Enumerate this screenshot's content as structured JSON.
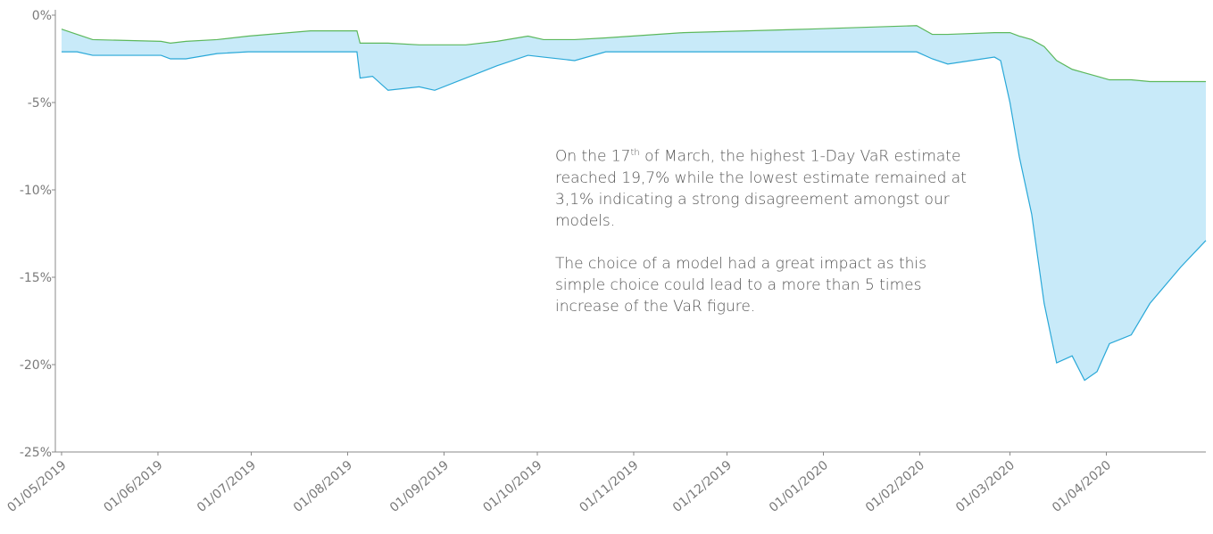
{
  "chart_data": {
    "type": "band",
    "x": [
      "2019-05-01",
      "2019-05-06",
      "2019-05-11",
      "2019-06-02",
      "2019-06-05",
      "2019-06-10",
      "2019-06-20",
      "2019-06-30",
      "2019-07-20",
      "2019-08-04",
      "2019-08-05",
      "2019-08-09",
      "2019-08-14",
      "2019-08-24",
      "2019-08-29",
      "2019-09-08",
      "2019-09-18",
      "2019-09-28",
      "2019-10-03",
      "2019-10-13",
      "2019-10-23",
      "2019-11-17",
      "2019-12-27",
      "2020-01-31",
      "2020-02-05",
      "2020-02-10",
      "2020-02-25",
      "2020-02-27",
      "2020-03-01",
      "2020-03-04",
      "2020-03-08",
      "2020-03-12",
      "2020-03-16",
      "2020-03-21",
      "2020-03-25",
      "2020-03-29",
      "2020-04-02",
      "2020-04-09",
      "2020-04-15",
      "2020-04-25",
      "2020-05-03"
    ],
    "series": [
      {
        "color": "#5cb85c",
        "values": [
          -0.8,
          -1.1,
          -1.4,
          -1.5,
          -1.6,
          -1.5,
          -1.4,
          -1.2,
          -0.9,
          -0.9,
          -1.6,
          -1.6,
          -1.6,
          -1.7,
          -1.7,
          -1.7,
          -1.5,
          -1.2,
          -1.4,
          -1.4,
          -1.3,
          -1.0,
          -0.8,
          -0.6,
          -1.1,
          -1.1,
          -1.0,
          -1.0,
          -1.0,
          -1.2,
          -1.4,
          -1.8,
          -2.6,
          -3.1,
          -3.3,
          -3.5,
          -3.7,
          -3.7,
          -3.8,
          -3.8,
          -3.8
        ]
      },
      {
        "color": "#29a8d8",
        "values": [
          -2.1,
          -2.1,
          -2.3,
          -2.3,
          -2.5,
          -2.5,
          -2.2,
          -2.1,
          -2.1,
          -2.1,
          -3.6,
          -3.5,
          -4.3,
          -4.1,
          -4.3,
          -3.6,
          -2.9,
          -2.3,
          -2.4,
          -2.6,
          -2.1,
          -2.1,
          -2.1,
          -2.1,
          -2.5,
          -2.8,
          -2.4,
          -2.6,
          -5.0,
          -8.1,
          -11.4,
          -16.5,
          -19.9,
          -19.5,
          -20.9,
          -20.4,
          -18.8,
          -18.3,
          -16.5,
          -14.4,
          -12.9
        ]
      }
    ],
    "fill_color": "#c8eaf9",
    "xlim": [
      "2019-04-29",
      "2020-05-03"
    ],
    "xticks": [
      {
        "value": "2019-05-01",
        "label": "01/05/2019"
      },
      {
        "value": "2019-06-01",
        "label": "01/06/2019"
      },
      {
        "value": "2019-07-01",
        "label": "01/07/2019"
      },
      {
        "value": "2019-08-01",
        "label": "01/08/2019"
      },
      {
        "value": "2019-09-01",
        "label": "01/09/2019"
      },
      {
        "value": "2019-10-01",
        "label": "01/10/2019"
      },
      {
        "value": "2019-11-01",
        "label": "01/11/2019"
      },
      {
        "value": "2019-12-01",
        "label": "01/12/2019"
      },
      {
        "value": "2020-01-01",
        "label": "01/01/2020"
      },
      {
        "value": "2020-02-01",
        "label": "01/02/2020"
      },
      {
        "value": "2020-03-01",
        "label": "01/03/2020"
      },
      {
        "value": "2020-04-01",
        "label": "01/04/2020"
      }
    ],
    "ylim": [
      -25,
      0
    ],
    "yticks": [
      {
        "value": 0,
        "label": "0%"
      },
      {
        "value": -5,
        "label": "-5%"
      },
      {
        "value": -10,
        "label": "-10%"
      },
      {
        "value": -15,
        "label": "-15%"
      },
      {
        "value": -20,
        "label": "-20%"
      },
      {
        "value": -25,
        "label": "-25%"
      }
    ],
    "annotations": [
      {
        "parts": [
          "On the 17",
          "th",
          " of March, the highest 1-Day VaR estimate reached 19,7% while the lowest estimate remained at 3,1% indicating a strong disagreement amongst our models."
        ]
      },
      {
        "parts": [
          "The choice of a model had a great impact as this simple choice could lead to a more than 5 times increase of the VaR figure."
        ]
      }
    ]
  }
}
